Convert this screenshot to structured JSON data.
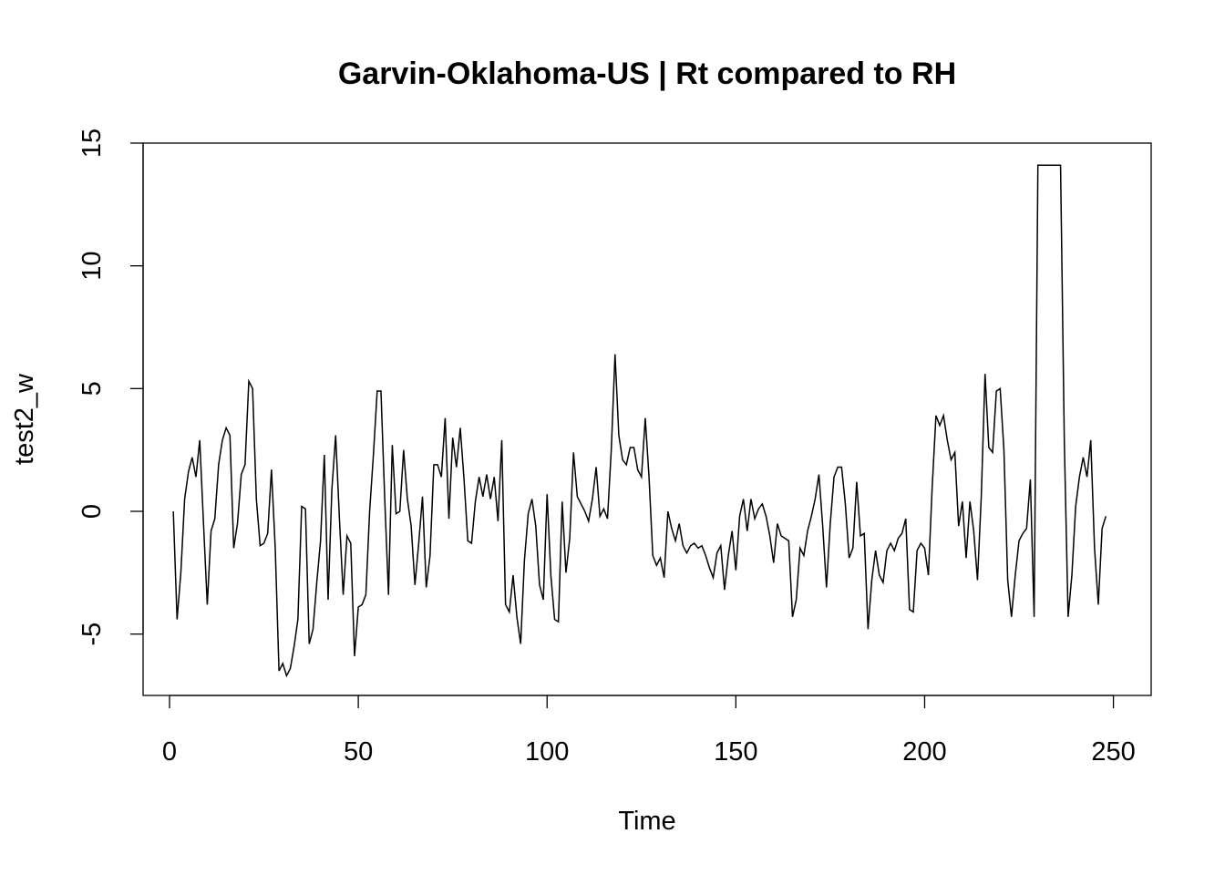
{
  "chart_data": {
    "type": "line",
    "title": "Garvin-Oklahoma-US | Rt compared to RH",
    "xlabel": "Time",
    "ylabel": "test2_w",
    "xlim": [
      -7,
      260
    ],
    "ylim": [
      -7.5,
      15
    ],
    "xticks": [
      0,
      50,
      100,
      150,
      200,
      250
    ],
    "yticks": [
      -5,
      0,
      5,
      10,
      15
    ],
    "grid": false,
    "series": [
      {
        "x_start": 1,
        "values": [
          0.0,
          -4.4,
          -2.5,
          0.5,
          1.6,
          2.2,
          1.4,
          2.9,
          -0.5,
          -3.8,
          -0.8,
          -0.3,
          1.9,
          2.9,
          3.4,
          3.1,
          -1.5,
          -0.5,
          1.5,
          1.9,
          5.3,
          5.0,
          0.5,
          -1.4,
          -1.3,
          -0.9,
          1.7,
          -1.5,
          -6.5,
          -6.2,
          -6.7,
          -6.4,
          -5.5,
          -4.4,
          0.2,
          0.1,
          -5.4,
          -4.8,
          -2.9,
          -1.2,
          2.3,
          -3.6,
          0.9,
          3.1,
          -0.3,
          -3.4,
          -1.0,
          -1.3,
          -5.9,
          -3.9,
          -3.8,
          -3.4,
          0.0,
          2.3,
          4.9,
          4.9,
          0.5,
          -3.4,
          2.7,
          -0.1,
          0.0,
          2.5,
          0.5,
          -0.6,
          -3.0,
          -1.3,
          0.6,
          -3.1,
          -1.8,
          1.9,
          1.9,
          1.4,
          3.8,
          -0.3,
          3.0,
          1.8,
          3.4,
          1.3,
          -1.2,
          -1.3,
          0.4,
          1.4,
          0.6,
          1.5,
          0.5,
          1.4,
          -0.4,
          2.9,
          -3.8,
          -4.1,
          -2.6,
          -4.3,
          -5.4,
          -2.0,
          -0.1,
          0.5,
          -0.6,
          -3.0,
          -3.6,
          0.7,
          -2.6,
          -4.4,
          -4.5,
          0.4,
          -2.5,
          -1.1,
          2.4,
          0.6,
          0.3,
          0.0,
          -0.4,
          0.5,
          1.8,
          -0.2,
          0.1,
          -0.3,
          2.5,
          6.4,
          3.1,
          2.1,
          1.9,
          2.6,
          2.6,
          1.7,
          1.4,
          3.8,
          1.4,
          -1.8,
          -2.2,
          -1.9,
          -2.7,
          0.0,
          -0.7,
          -1.2,
          -0.5,
          -1.4,
          -1.7,
          -1.4,
          -1.3,
          -1.5,
          -1.4,
          -1.8,
          -2.3,
          -2.7,
          -1.7,
          -1.4,
          -3.2,
          -1.8,
          -0.8,
          -2.4,
          -0.2,
          0.5,
          -0.8,
          0.5,
          -0.3,
          0.1,
          0.3,
          -0.2,
          -1.0,
          -2.1,
          -0.5,
          -1.0,
          -1.1,
          -1.2,
          -4.3,
          -3.6,
          -1.5,
          -1.8,
          -0.8,
          -0.2,
          0.5,
          1.5,
          -0.6,
          -3.1,
          -0.5,
          1.4,
          1.8,
          1.8,
          0.3,
          -1.9,
          -1.5,
          1.2,
          -1.0,
          -0.9,
          -4.8,
          -2.8,
          -1.6,
          -2.6,
          -2.9,
          -1.6,
          -1.3,
          -1.6,
          -1.1,
          -0.9,
          -0.3,
          -4.0,
          -4.1,
          -1.6,
          -1.3,
          -1.5,
          -2.6,
          1.0,
          3.9,
          3.5,
          3.9,
          2.9,
          2.1,
          2.4,
          -0.6,
          0.4,
          -1.9,
          0.4,
          -0.8,
          -2.8,
          0.6,
          5.6,
          2.6,
          2.4,
          4.9,
          5.0,
          2.5,
          -2.8,
          -4.3,
          -2.6,
          -1.2,
          -0.9,
          -0.7,
          1.3,
          -4.3,
          14.1,
          14.1,
          14.1,
          14.1,
          14.1,
          14.1,
          14.1,
          2.8,
          -4.3,
          -2.6,
          0.2,
          1.4,
          2.2,
          1.4,
          2.9,
          -1.5,
          -3.8,
          -0.7,
          -0.2
        ]
      }
    ]
  }
}
